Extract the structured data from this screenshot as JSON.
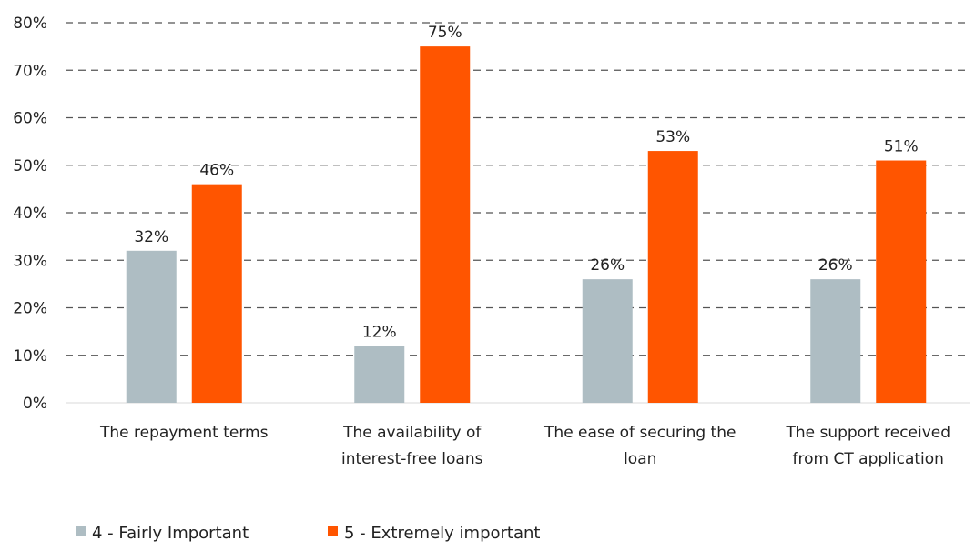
{
  "chart_data": {
    "type": "bar",
    "categories": [
      [
        "The repayment terms"
      ],
      [
        "The availability of",
        "interest-free loans"
      ],
      [
        "The ease of securing the",
        "loan"
      ],
      [
        "The support received",
        "from CT application"
      ]
    ],
    "series": [
      {
        "name": "4 - Fairly Important",
        "color": "#aebdc3",
        "values": [
          32,
          12,
          26,
          26
        ]
      },
      {
        "name": "5 - Extremely important",
        "color": "#ff5500",
        "values": [
          46,
          75,
          53,
          51
        ]
      }
    ],
    "data_labels": [
      [
        "32%",
        "12%",
        "26%",
        "26%"
      ],
      [
        "46%",
        "75%",
        "53%",
        "51%"
      ]
    ],
    "y_ticks": [
      "0%",
      "10%",
      "20%",
      "30%",
      "40%",
      "50%",
      "60%",
      "70%",
      "80%"
    ],
    "ylim": [
      0,
      80
    ],
    "grid": "dashed horizontal",
    "legend_position": "bottom-left"
  }
}
